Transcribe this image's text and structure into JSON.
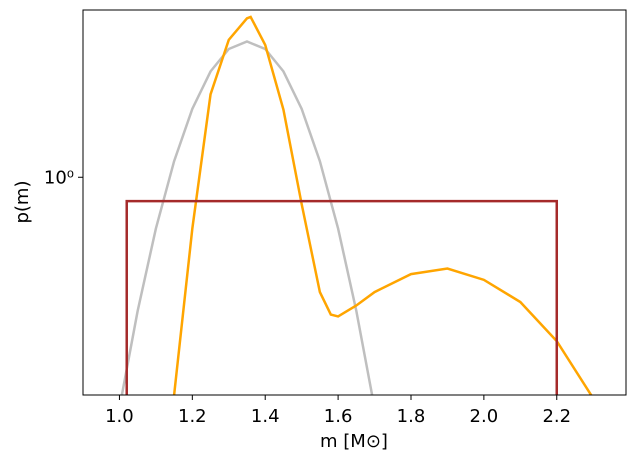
{
  "chart_data": {
    "type": "line",
    "xlabel": "m [M⊙]",
    "ylabel": "p(m)",
    "xlim": [
      0.9,
      2.39
    ],
    "ylim": [
      0.22,
      3.2
    ],
    "yscale": "log",
    "xticks": [
      {
        "value": 1.0,
        "label": "1.0"
      },
      {
        "value": 1.2,
        "label": "1.2"
      },
      {
        "value": 1.4,
        "label": "1.4"
      },
      {
        "value": 1.6,
        "label": "1.6"
      },
      {
        "value": 1.8,
        "label": "1.8"
      },
      {
        "value": 2.0,
        "label": "2.0"
      },
      {
        "value": 2.2,
        "label": "2.2"
      }
    ],
    "yticks": [
      {
        "value": 1,
        "label": "10⁰"
      }
    ],
    "series": [
      {
        "color": "#bfbfbf",
        "x": [
          1.0,
          1.05,
          1.1,
          1.15,
          1.2,
          1.25,
          1.3,
          1.35,
          1.4,
          1.45,
          1.5,
          1.55,
          1.6,
          1.65,
          1.7
        ],
        "values": [
          0.201,
          0.395,
          0.7,
          1.118,
          1.609,
          2.088,
          2.44,
          2.57,
          2.44,
          2.088,
          1.609,
          1.118,
          0.7,
          0.395,
          0.201
        ]
      },
      {
        "color": "#ffa500",
        "x": [
          1.15,
          1.2,
          1.25,
          1.3,
          1.35,
          1.36,
          1.4,
          1.45,
          1.5,
          1.55,
          1.58,
          1.6,
          1.65,
          1.7,
          1.8,
          1.9,
          2.0,
          2.1,
          2.2,
          2.3
        ],
        "values": [
          0.22,
          0.7,
          1.78,
          2.6,
          3.02,
          3.05,
          2.51,
          1.6,
          0.83,
          0.45,
          0.385,
          0.38,
          0.41,
          0.45,
          0.51,
          0.53,
          0.49,
          0.42,
          0.32,
          0.215
        ]
      },
      {
        "color": "#a52a2a",
        "step": true,
        "x": [
          1.02,
          2.2
        ],
        "values": [
          0.847,
          0.847
        ]
      }
    ]
  }
}
